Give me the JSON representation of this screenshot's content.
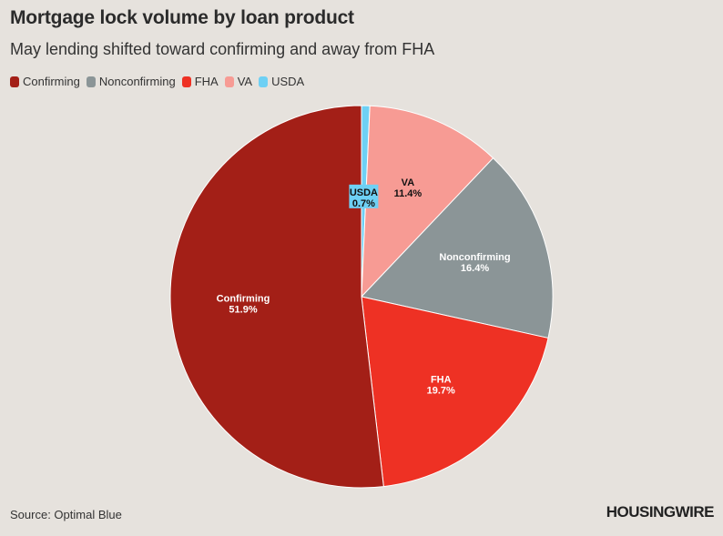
{
  "header": {
    "title": "Mortgage lock volume by loan product",
    "subtitle": "May lending shifted toward confirming and away from FHA"
  },
  "chart_data": {
    "type": "pie",
    "categories": [
      "Confirming",
      "Nonconfirming",
      "FHA",
      "VA",
      "USDA"
    ],
    "values": [
      51.9,
      16.4,
      19.7,
      11.4,
      0.7
    ],
    "value_labels": [
      "51.9%",
      "16.4%",
      "19.7%",
      "11.4%",
      "0.7%"
    ],
    "colors": [
      "#a31f17",
      "#8b9597",
      "#ee3124",
      "#f79b94",
      "#6ed0f4"
    ],
    "legend_position": "top-left",
    "title": "Mortgage lock volume by loan product",
    "subtitle": "May lending shifted toward confirming and away from FHA"
  },
  "footer": {
    "source": "Source: Optimal Blue",
    "brand": "HOUSINGWIRE"
  }
}
